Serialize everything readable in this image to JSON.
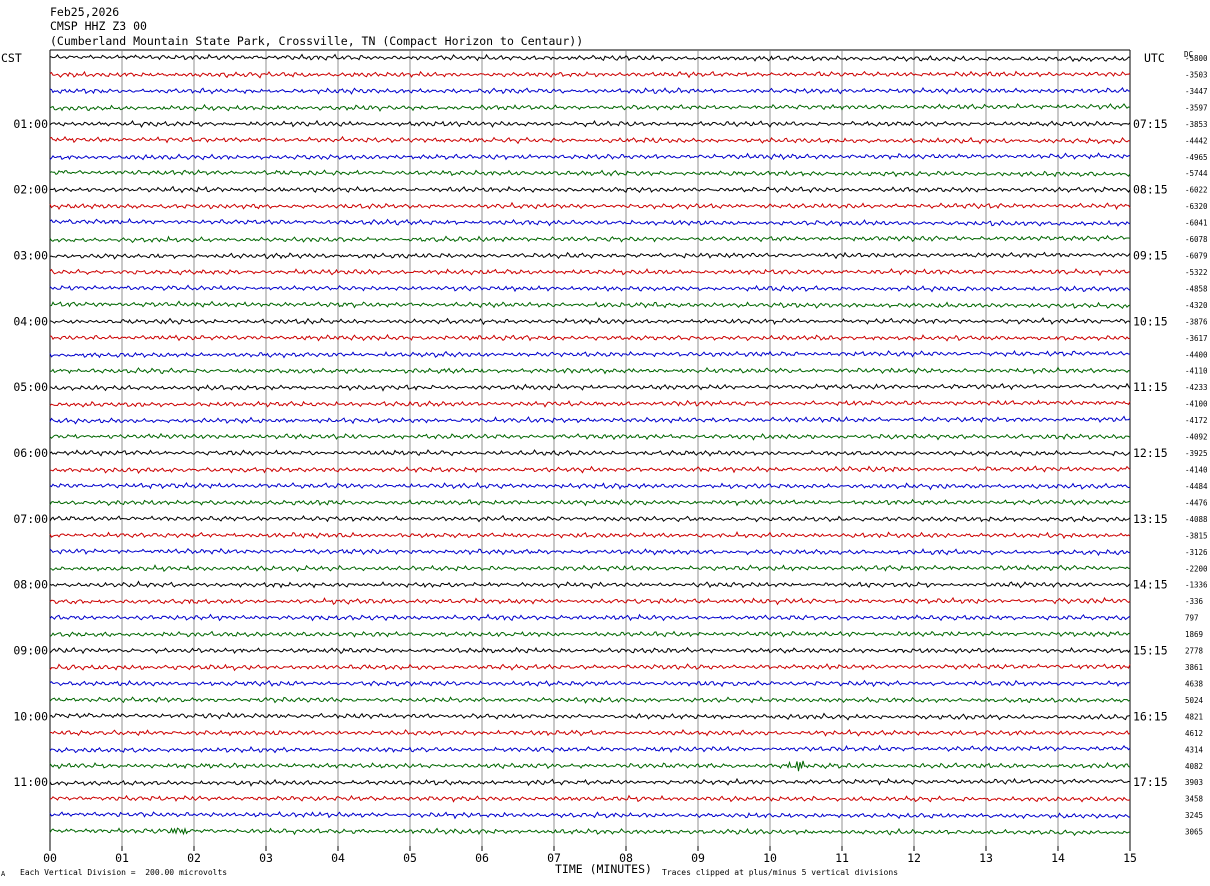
{
  "header": {
    "date": "Feb25,2026",
    "station": "CMSP HHZ Z3 00",
    "location": "(Cumberland Mountain State Park, Crossville, TN (Compact Horizon to Centaur))",
    "tz_left": "CST",
    "tz_right": "UTC"
  },
  "footer": {
    "scale_note": "Each Vertical Division =  200.00 microvolts",
    "x_title": "TIME (MINUTES)",
    "clip_note": "Traces clipped at plus/minus 5 vertical divisions",
    "corner_mark": "A"
  },
  "colors": [
    "#000000",
    "#cc0000",
    "#0000cc",
    "#006600"
  ],
  "chart_data": {
    "type": "line",
    "title": "CMSP HHZ Z3 00",
    "xlabel": "TIME (MINUTES)",
    "xlim": [
      0,
      15
    ],
    "x_ticks": [
      "00",
      "01",
      "02",
      "03",
      "04",
      "05",
      "06",
      "07",
      "08",
      "09",
      "10",
      "11",
      "12",
      "13",
      "14",
      "15"
    ],
    "rows_per_hour": 4,
    "row_count": 48,
    "left_hour_labels": [
      "01:00",
      "02:00",
      "03:00",
      "04:00",
      "05:00",
      "06:00",
      "07:00",
      "08:00",
      "09:00",
      "10:00",
      "11:00"
    ],
    "right_hour_labels": [
      "07:15",
      "08:15",
      "09:15",
      "10:15",
      "11:15",
      "12:15",
      "13:15",
      "14:15",
      "15:15",
      "16:15",
      "17:15"
    ],
    "first_hour_label_row": 4,
    "row_offsets_top": "DC",
    "row_offsets": [
      "-5800",
      "-3503",
      "-3447",
      "-3597",
      "-3853",
      "-4442",
      "-4965",
      "-5744",
      "-6022",
      "-6320",
      "-6041",
      "-6078",
      "-6079",
      "-5322",
      "-4858",
      "-4320",
      "-3876",
      "-3617",
      "-4400",
      "-4110",
      "-4233",
      "-4100",
      "-4172",
      "-4092",
      "-3925",
      "-4140",
      "-4484",
      "-4476",
      "-4088",
      "-3815",
      "-3126",
      "-2200",
      "-1336",
      "-336",
      "797",
      "1869",
      "2778",
      "3861",
      "4638",
      "5024",
      "4821",
      "4612",
      "4314",
      "4082",
      "3903",
      "3458",
      "3245",
      "3065"
    ],
    "events": [
      {
        "row": 43,
        "minute": 10.4,
        "amplitude": "large"
      },
      {
        "row": 47,
        "minute": 1.8,
        "amplitude": "small"
      }
    ]
  }
}
